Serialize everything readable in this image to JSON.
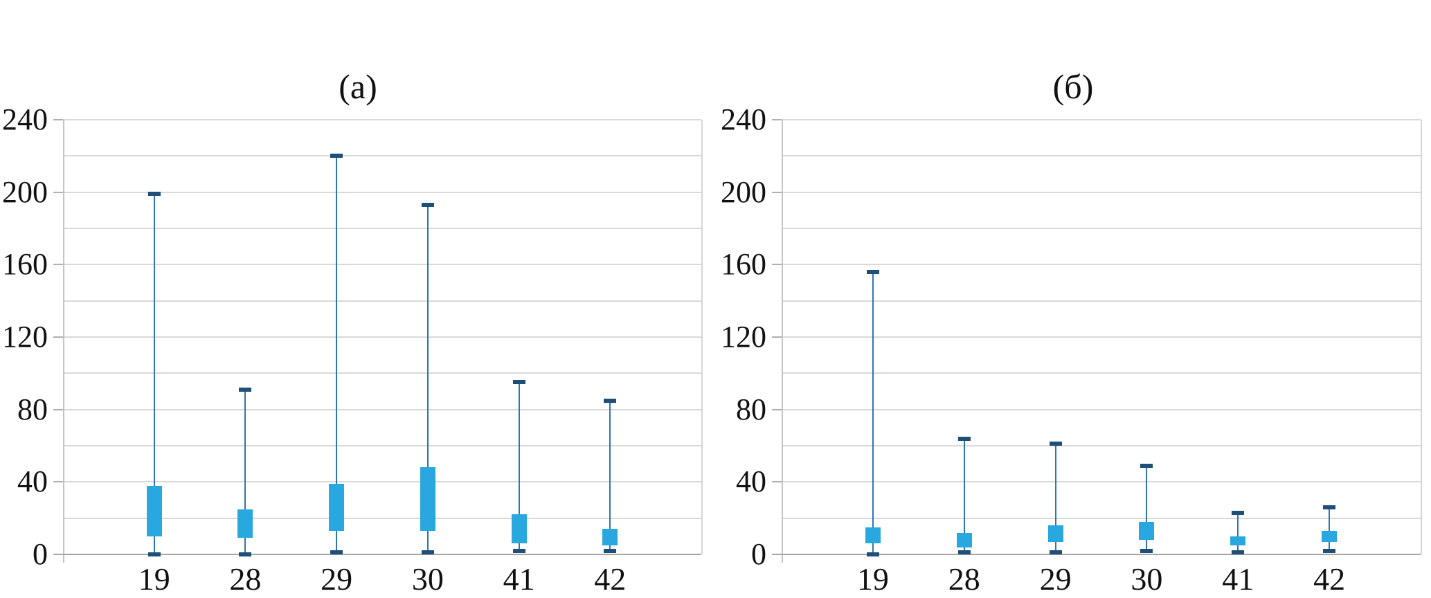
{
  "figure": {
    "background": "#ffffff"
  },
  "colors": {
    "box_fill": "#29a7df",
    "whisker_line": "#2e75b6",
    "whisker_cap": "#1f4e79",
    "gridline": "#d9d9d9",
    "axis_line": "#a6a6a6",
    "text": "#111111"
  },
  "chart_data": [
    {
      "type": "boxplot",
      "title": "(а)",
      "xlabel": "",
      "ylabel": "",
      "ylim": [
        0,
        240
      ],
      "y_minor_step": 20,
      "y_tick_labels": [
        "0",
        "40",
        "80",
        "120",
        "160",
        "200",
        "240"
      ],
      "grid": true,
      "categories": [
        "19",
        "28",
        "29",
        "30",
        "41",
        "42"
      ],
      "series": [
        {
          "label": "19",
          "min": 0,
          "q1": 10,
          "q3": 38,
          "max": 199
        },
        {
          "label": "28",
          "min": 0,
          "q1": 9,
          "q3": 25,
          "max": 91
        },
        {
          "label": "29",
          "min": 1,
          "q1": 13,
          "q3": 39,
          "max": 220
        },
        {
          "label": "30",
          "min": 1,
          "q1": 13,
          "q3": 48,
          "max": 193
        },
        {
          "label": "41",
          "min": 2,
          "q1": 6,
          "q3": 22,
          "max": 95
        },
        {
          "label": "42",
          "min": 2,
          "q1": 5,
          "q3": 14,
          "max": 85
        }
      ]
    },
    {
      "type": "boxplot",
      "title": "(б)",
      "xlabel": "",
      "ylabel": "",
      "ylim": [
        0,
        240
      ],
      "y_minor_step": 20,
      "y_tick_labels": [
        "0",
        "40",
        "80",
        "120",
        "160",
        "200",
        "240"
      ],
      "grid": true,
      "categories": [
        "19",
        "28",
        "29",
        "30",
        "41",
        "42"
      ],
      "series": [
        {
          "label": "19",
          "min": 0,
          "q1": 6,
          "q3": 15,
          "max": 156
        },
        {
          "label": "28",
          "min": 1,
          "q1": 4,
          "q3": 12,
          "max": 64
        },
        {
          "label": "29",
          "min": 1,
          "q1": 7,
          "q3": 16,
          "max": 61
        },
        {
          "label": "30",
          "min": 2,
          "q1": 8,
          "q3": 18,
          "max": 49
        },
        {
          "label": "41",
          "min": 1,
          "q1": 5,
          "q3": 10,
          "max": 23
        },
        {
          "label": "42",
          "min": 2,
          "q1": 7,
          "q3": 13,
          "max": 26
        }
      ]
    }
  ]
}
